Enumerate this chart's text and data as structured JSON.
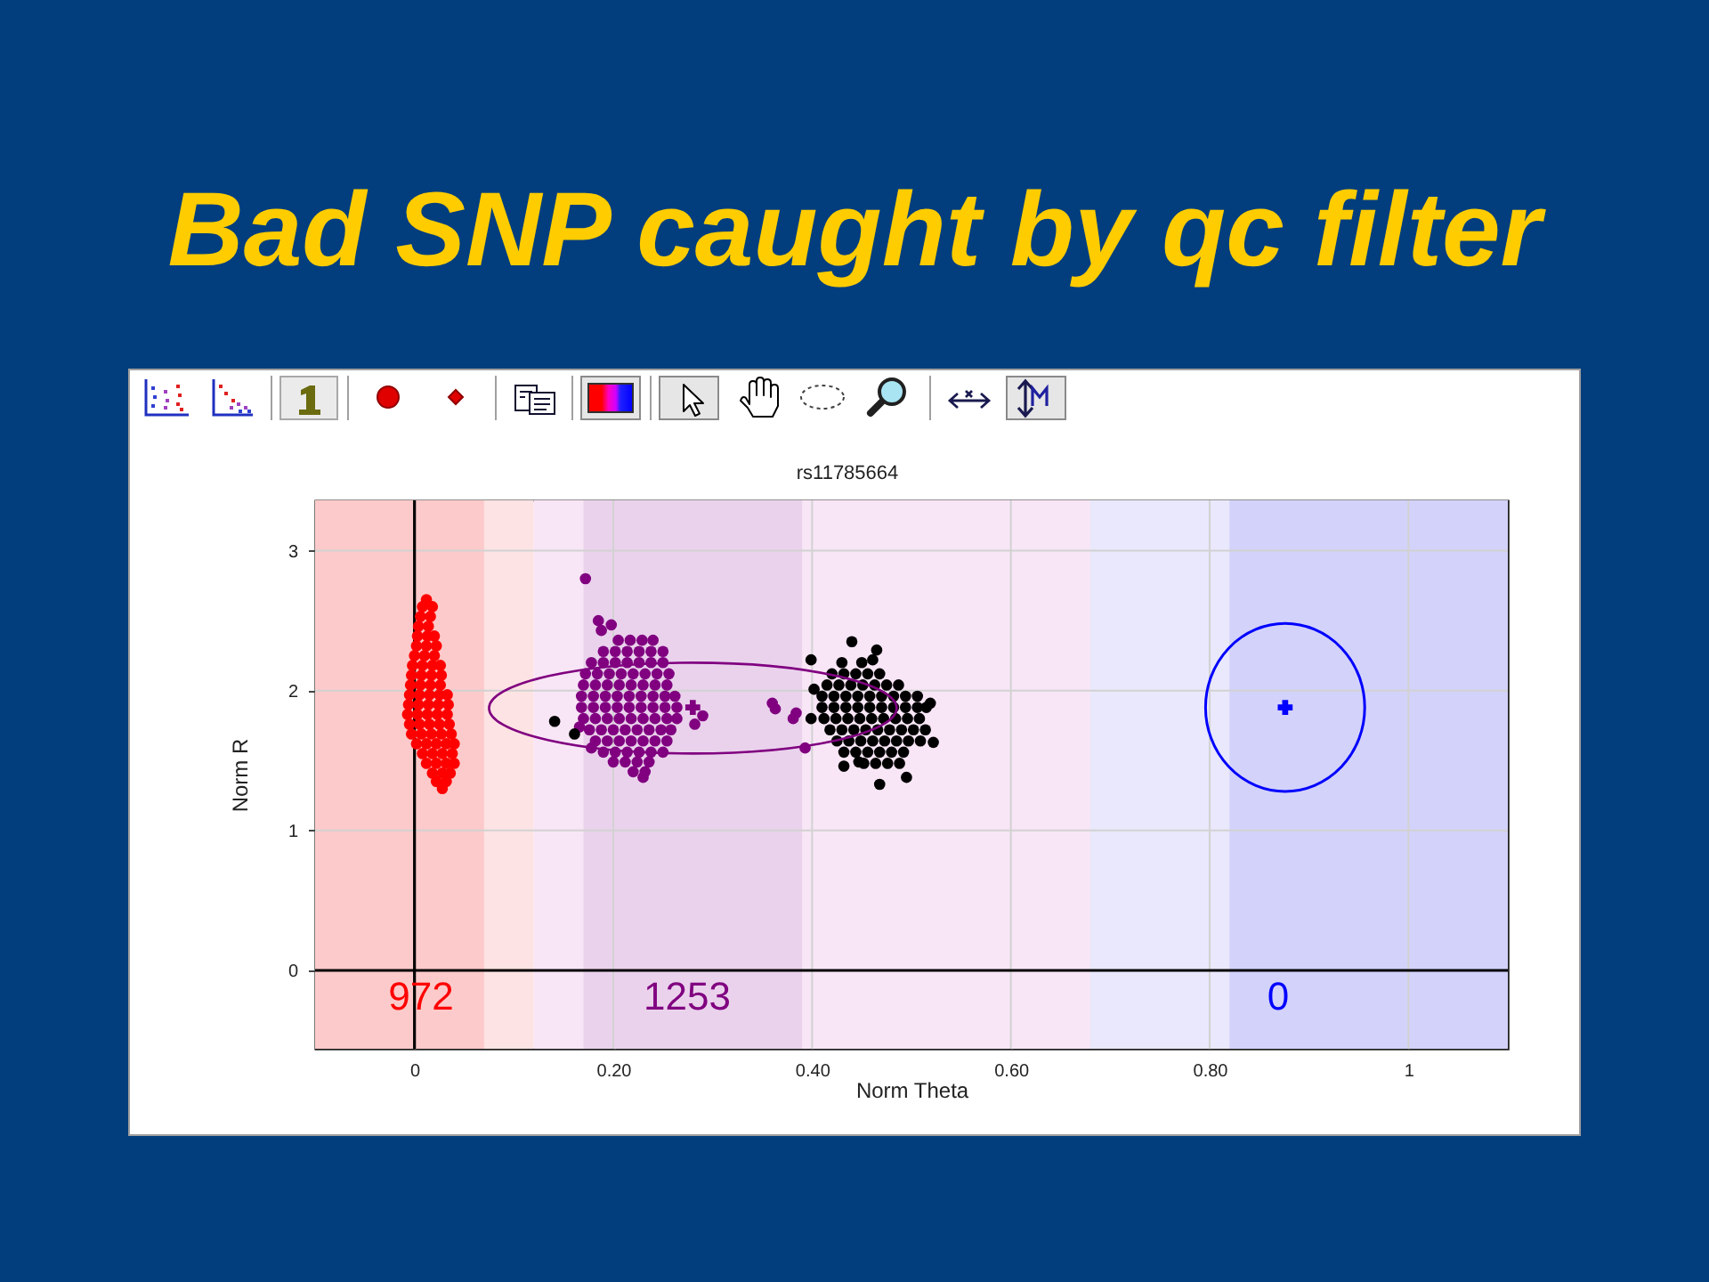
{
  "chart_data": {
    "type": "scatter",
    "title": "Bad SNP caught by qc filter",
    "subtitle": "rs11785664",
    "xlabel": "Norm Theta",
    "ylabel": "Norm R",
    "xlim": [
      -0.1,
      1.1
    ],
    "ylim": [
      -0.56,
      3.36
    ],
    "xticks": [
      0,
      {
        "value": 0.2,
        "label": "0.20"
      },
      {
        "value": 0.4,
        "label": "0.40"
      },
      {
        "value": 0.6,
        "label": "0.60"
      },
      {
        "value": 0.8,
        "label": "0.80"
      },
      1
    ],
    "yticks": [
      0,
      1,
      2,
      3
    ],
    "grid": true,
    "bands": [
      {
        "axis": "x",
        "from": -0.1,
        "to": 0.12,
        "color": "#fde3e3"
      },
      {
        "axis": "x",
        "from": 0.12,
        "to": 0.68,
        "color": "#f8e6f6"
      },
      {
        "axis": "x",
        "from": 0.68,
        "to": 1.1,
        "color": "#e9e8fc"
      },
      {
        "axis": "x",
        "from": -0.1,
        "to": 0.07,
        "color": "#fccaca"
      },
      {
        "axis": "x",
        "from": 0.17,
        "to": 0.39,
        "color": "#ead2ec"
      },
      {
        "axis": "x",
        "from": 0.82,
        "to": 1.1,
        "color": "#d3d2fa"
      }
    ],
    "series": [
      {
        "color": "#ff0000",
        "marker": "circle",
        "x": [
          0.012,
          0.008,
          0.018,
          0.006,
          0.016,
          0.004,
          0.014,
          0.003,
          0.013,
          0.02,
          0.002,
          0.012,
          0.022,
          0,
          0.01,
          0.02,
          -0.002,
          0.008,
          0.018,
          0.026,
          -0.003,
          0.007,
          0.017,
          0.027,
          -0.004,
          0.006,
          0.016,
          0.026,
          -0.005,
          0.005,
          0.015,
          0.025,
          0.033,
          -0.006,
          0.004,
          0.014,
          0.024,
          0.034,
          -0.007,
          0.003,
          0.013,
          0.023,
          0.033,
          -0.005,
          0.005,
          0.015,
          0.025,
          0.035,
          -0.003,
          0.007,
          0.017,
          0.027,
          0.037,
          0.002,
          0.012,
          0.022,
          0.032,
          0.04,
          0.008,
          0.018,
          0.028,
          0.038,
          0.012,
          0.022,
          0.032,
          0.04,
          0.018,
          0.028,
          0.036,
          0.022,
          0.032,
          0.028
        ],
        "values": [
          2.65,
          2.6,
          2.6,
          2.53,
          2.53,
          2.46,
          2.46,
          2.39,
          2.39,
          2.39,
          2.32,
          2.32,
          2.32,
          2.25,
          2.25,
          2.25,
          2.18,
          2.18,
          2.18,
          2.18,
          2.11,
          2.11,
          2.11,
          2.11,
          2.04,
          2.04,
          2.04,
          2.04,
          1.97,
          1.97,
          1.97,
          1.97,
          1.97,
          1.9,
          1.9,
          1.9,
          1.9,
          1.9,
          1.83,
          1.83,
          1.83,
          1.83,
          1.83,
          1.76,
          1.76,
          1.76,
          1.76,
          1.76,
          1.69,
          1.69,
          1.69,
          1.69,
          1.69,
          1.62,
          1.62,
          1.62,
          1.62,
          1.62,
          1.55,
          1.55,
          1.55,
          1.55,
          1.48,
          1.48,
          1.48,
          1.48,
          1.41,
          1.41,
          1.41,
          1.35,
          1.35,
          1.3
        ]
      },
      {
        "color": "#800080",
        "marker": "circle",
        "x": [
          0.205,
          0.217,
          0.229,
          0.24,
          0.19,
          0.202,
          0.214,
          0.226,
          0.238,
          0.25,
          0.178,
          0.19,
          0.202,
          0.214,
          0.226,
          0.238,
          0.25,
          0.172,
          0.184,
          0.196,
          0.208,
          0.22,
          0.232,
          0.244,
          0.256,
          0.17,
          0.182,
          0.194,
          0.206,
          0.218,
          0.23,
          0.242,
          0.254,
          0.168,
          0.18,
          0.192,
          0.204,
          0.216,
          0.228,
          0.24,
          0.252,
          0.262,
          0.168,
          0.18,
          0.192,
          0.204,
          0.216,
          0.228,
          0.24,
          0.252,
          0.264,
          0.17,
          0.182,
          0.194,
          0.206,
          0.218,
          0.23,
          0.242,
          0.254,
          0.264,
          0.176,
          0.188,
          0.2,
          0.212,
          0.224,
          0.236,
          0.248,
          0.258,
          0.182,
          0.194,
          0.206,
          0.218,
          0.23,
          0.242,
          0.254,
          0.19,
          0.202,
          0.214,
          0.226,
          0.238,
          0.25,
          0.2,
          0.212,
          0.224,
          0.236,
          0.22,
          0.232,
          0.172,
          0.185,
          0.198,
          0.188,
          0.29,
          0.282,
          0.36,
          0.363,
          0.381,
          0.384,
          0.393,
          0.166,
          0.178,
          0.23
        ],
        "values": [
          2.36,
          2.36,
          2.36,
          2.36,
          2.28,
          2.28,
          2.28,
          2.28,
          2.28,
          2.28,
          2.2,
          2.2,
          2.2,
          2.2,
          2.2,
          2.2,
          2.2,
          2.12,
          2.12,
          2.12,
          2.12,
          2.12,
          2.12,
          2.12,
          2.12,
          2.04,
          2.04,
          2.04,
          2.04,
          2.04,
          2.04,
          2.04,
          2.04,
          1.96,
          1.96,
          1.96,
          1.96,
          1.96,
          1.96,
          1.96,
          1.96,
          1.96,
          1.88,
          1.88,
          1.88,
          1.88,
          1.88,
          1.88,
          1.88,
          1.88,
          1.88,
          1.8,
          1.8,
          1.8,
          1.8,
          1.8,
          1.8,
          1.8,
          1.8,
          1.8,
          1.72,
          1.72,
          1.72,
          1.72,
          1.72,
          1.72,
          1.72,
          1.72,
          1.64,
          1.64,
          1.64,
          1.64,
          1.64,
          1.64,
          1.64,
          1.56,
          1.56,
          1.56,
          1.56,
          1.56,
          1.56,
          1.49,
          1.49,
          1.49,
          1.49,
          1.42,
          1.42,
          2.8,
          2.5,
          2.47,
          2.43,
          1.82,
          1.76,
          1.91,
          1.87,
          1.8,
          1.84,
          1.59,
          1.74,
          1.59,
          1.38
        ]
      },
      {
        "color": "#000000",
        "marker": "circle",
        "x": [
          0.43,
          0.45,
          0.42,
          0.432,
          0.444,
          0.456,
          0.468,
          0.415,
          0.427,
          0.439,
          0.451,
          0.463,
          0.475,
          0.487,
          0.41,
          0.422,
          0.434,
          0.446,
          0.458,
          0.47,
          0.482,
          0.494,
          0.506,
          0.41,
          0.422,
          0.434,
          0.446,
          0.458,
          0.47,
          0.482,
          0.494,
          0.506,
          0.515,
          0.412,
          0.424,
          0.436,
          0.448,
          0.46,
          0.472,
          0.484,
          0.496,
          0.508,
          0.418,
          0.43,
          0.442,
          0.454,
          0.466,
          0.478,
          0.49,
          0.502,
          0.514,
          0.425,
          0.437,
          0.449,
          0.461,
          0.473,
          0.485,
          0.497,
          0.509,
          0.432,
          0.444,
          0.456,
          0.468,
          0.48,
          0.492,
          0.452,
          0.464,
          0.476,
          0.488,
          0.44,
          0.465,
          0.461,
          0.399,
          0.402,
          0.399,
          0.432,
          0.447,
          0.468,
          0.495,
          0.519,
          0.522,
          0.141,
          0.161
        ],
        "values": [
          2.2,
          2.2,
          2.12,
          2.12,
          2.12,
          2.12,
          2.12,
          2.04,
          2.04,
          2.04,
          2.04,
          2.04,
          2.04,
          2.04,
          1.96,
          1.96,
          1.96,
          1.96,
          1.96,
          1.96,
          1.96,
          1.96,
          1.96,
          1.88,
          1.88,
          1.88,
          1.88,
          1.88,
          1.88,
          1.88,
          1.88,
          1.88,
          1.88,
          1.8,
          1.8,
          1.8,
          1.8,
          1.8,
          1.8,
          1.8,
          1.8,
          1.8,
          1.72,
          1.72,
          1.72,
          1.72,
          1.72,
          1.72,
          1.72,
          1.72,
          1.72,
          1.64,
          1.64,
          1.64,
          1.64,
          1.64,
          1.64,
          1.64,
          1.64,
          1.56,
          1.56,
          1.56,
          1.56,
          1.56,
          1.56,
          1.48,
          1.48,
          1.48,
          1.48,
          2.35,
          2.29,
          2.22,
          2.22,
          2.01,
          1.8,
          1.46,
          1.49,
          1.33,
          1.38,
          1.91,
          1.63,
          1.78,
          1.69
        ]
      },
      {
        "color": "#800080",
        "marker": "cross",
        "x": [
          0.28
        ],
        "values": [
          1.88
        ]
      },
      {
        "color": "#0000ff",
        "marker": "cross",
        "x": [
          0.876
        ],
        "values": [
          1.88
        ]
      }
    ],
    "annotations": [
      "972",
      "1253",
      "0"
    ]
  }
}
